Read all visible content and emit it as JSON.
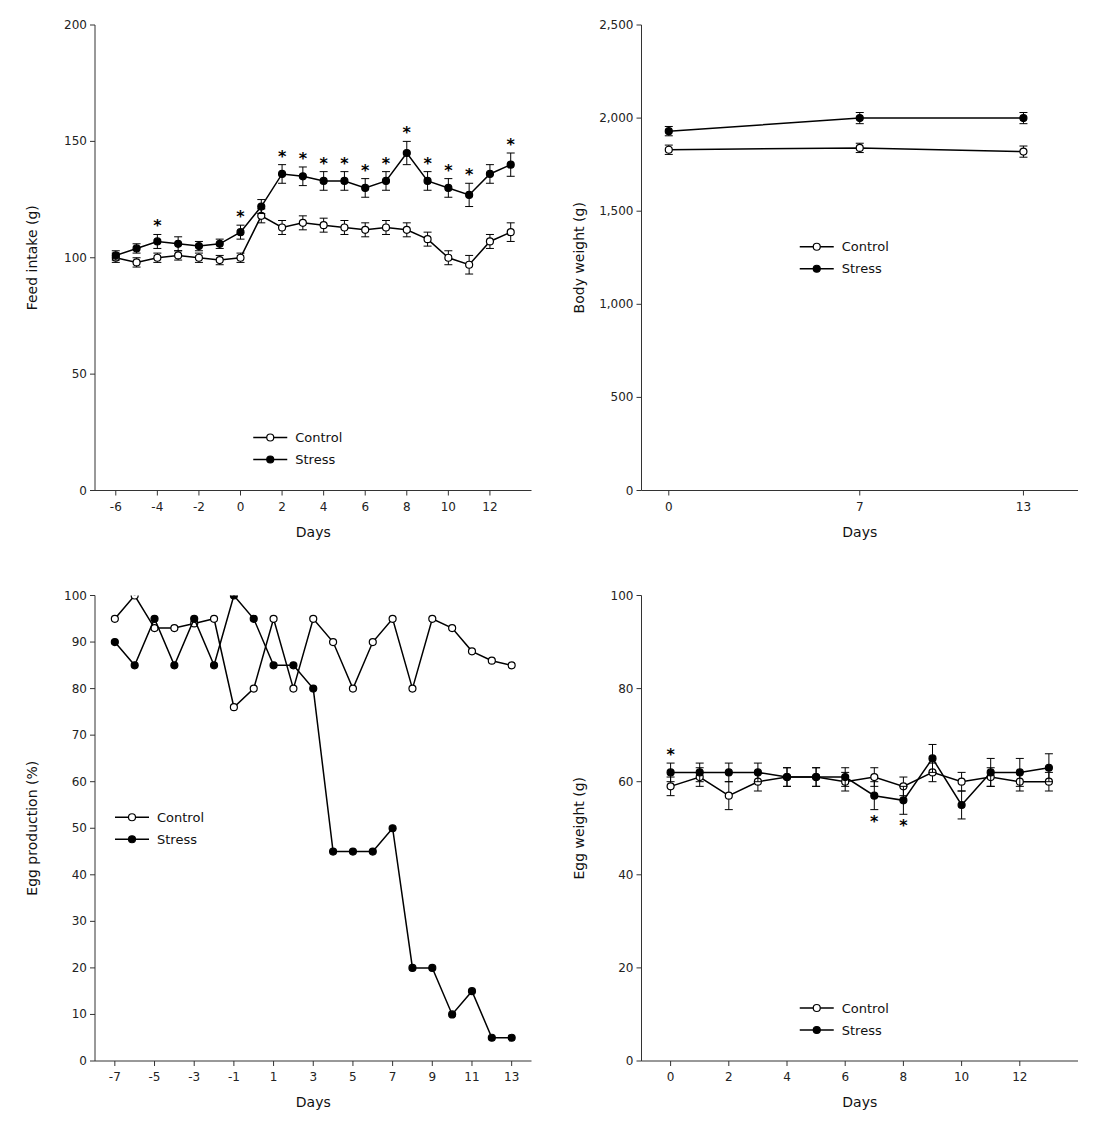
{
  "chart_data": [
    {
      "type": "line",
      "xlabel": "Days",
      "ylabel": "Feed intake (g)",
      "x": [
        -6,
        -5,
        -4,
        -3,
        -2,
        -1,
        0,
        1,
        2,
        3,
        4,
        5,
        6,
        7,
        8,
        9,
        10,
        11,
        12,
        13
      ],
      "series": [
        {
          "name": "Control",
          "color": "#000000",
          "marker": "circle-open",
          "values": [
            100,
            98,
            100,
            101,
            100,
            99,
            100,
            118,
            113,
            115,
            114,
            113,
            112,
            113,
            112,
            108,
            100,
            97,
            107,
            111
          ],
          "errors": [
            2,
            2,
            2,
            2,
            2,
            2,
            2,
            3,
            3,
            3,
            3,
            3,
            3,
            3,
            3,
            3,
            3,
            4,
            3,
            4
          ]
        },
        {
          "name": "Stress",
          "color": "#000000",
          "marker": "circle",
          "values": [
            101,
            104,
            107,
            106,
            105,
            106,
            111,
            122,
            136,
            135,
            133,
            133,
            130,
            133,
            145,
            133,
            130,
            127,
            136,
            140
          ],
          "errors": [
            2,
            2,
            3,
            3,
            2,
            2,
            3,
            3,
            4,
            4,
            4,
            4,
            4,
            4,
            5,
            4,
            4,
            5,
            4,
            5
          ]
        }
      ],
      "annotations": [
        {
          "text": "*",
          "x": -4,
          "series": "Stress",
          "position": "above"
        },
        {
          "text": "*",
          "x": 0,
          "series": "Stress",
          "position": "above"
        },
        {
          "text": "*",
          "x": 2,
          "series": "Stress",
          "position": "above"
        },
        {
          "text": "*",
          "x": 3,
          "series": "Stress",
          "position": "above"
        },
        {
          "text": "*",
          "x": 4,
          "series": "Stress",
          "position": "above"
        },
        {
          "text": "*",
          "x": 5,
          "series": "Stress",
          "position": "above"
        },
        {
          "text": "*",
          "x": 6,
          "series": "Stress",
          "position": "above"
        },
        {
          "text": "*",
          "x": 7,
          "series": "Stress",
          "position": "above"
        },
        {
          "text": "*",
          "x": 8,
          "series": "Stress",
          "position": "above"
        },
        {
          "text": "*",
          "x": 9,
          "series": "Stress",
          "position": "above"
        },
        {
          "text": "*",
          "x": 10,
          "series": "Stress",
          "position": "above"
        },
        {
          "text": "*",
          "x": 11,
          "series": "Stress",
          "position": "above"
        },
        {
          "text": "*",
          "x": 13,
          "series": "Stress",
          "position": "above"
        }
      ],
      "xlim": [
        -7,
        14
      ],
      "xticks": [
        -6,
        -4,
        -2,
        0,
        2,
        4,
        6,
        8,
        10,
        12
      ],
      "ylim": [
        0,
        200
      ],
      "yticks": [
        0,
        50,
        100,
        150,
        200
      ],
      "grid": false,
      "legend": "lower center"
    },
    {
      "type": "line",
      "xlabel": "Days",
      "ylabel": "Body weight (g)",
      "x": [
        0,
        7,
        13
      ],
      "series": [
        {
          "name": "Control",
          "color": "#000000",
          "marker": "circle-open",
          "values": [
            1830,
            1840,
            1820
          ],
          "errors": [
            25,
            25,
            30
          ]
        },
        {
          "name": "Stress",
          "color": "#000000",
          "marker": "circle",
          "values": [
            1930,
            2000,
            2000
          ],
          "errors": [
            25,
            30,
            30
          ]
        }
      ],
      "xlim": [
        -1,
        15
      ],
      "xticks": [
        0,
        7,
        13
      ],
      "ylim": [
        0,
        2500
      ],
      "yticks": [
        0,
        500,
        {
          "value": 1000,
          "label": "1,000"
        },
        {
          "value": 1500,
          "label": "1,500"
        },
        {
          "value": 2000,
          "label": "2,000"
        },
        {
          "value": 2500,
          "label": "2,500"
        }
      ],
      "grid": false,
      "legend": "center"
    },
    {
      "type": "line",
      "xlabel": "Days",
      "ylabel": "Egg production (%)",
      "x": [
        -7,
        -6,
        -5,
        -4,
        -3,
        -2,
        -1,
        0,
        1,
        2,
        3,
        4,
        5,
        6,
        7,
        8,
        9,
        10,
        11,
        12,
        13
      ],
      "series": [
        {
          "name": "Control",
          "color": "#000000",
          "marker": "circle-open",
          "values": [
            95,
            100,
            93,
            93,
            94,
            95,
            76,
            80,
            95,
            80,
            95,
            90,
            80,
            90,
            95,
            80,
            95,
            93,
            88,
            86,
            85
          ]
        },
        {
          "name": "Stress",
          "color": "#000000",
          "marker": "circle",
          "values": [
            90,
            85,
            95,
            85,
            95,
            85,
            100,
            95,
            85,
            85,
            80,
            45,
            45,
            45,
            50,
            20,
            20,
            10,
            15,
            5,
            5
          ]
        }
      ],
      "xlim": [
        -8,
        14
      ],
      "xticks": [
        -7,
        -5,
        -3,
        -1,
        1,
        3,
        5,
        7,
        9,
        11,
        13
      ],
      "ylim": [
        0,
        100
      ],
      "yticks": [
        0,
        10,
        20,
        30,
        40,
        50,
        60,
        70,
        80,
        90,
        100
      ],
      "grid": false,
      "legend": "center left"
    },
    {
      "type": "line",
      "xlabel": "Days",
      "ylabel": "Egg weight (g)",
      "x": [
        0,
        1,
        2,
        3,
        4,
        5,
        6,
        7,
        8,
        9,
        10,
        11,
        12,
        13
      ],
      "series": [
        {
          "name": "Control",
          "color": "#000000",
          "marker": "circle-open",
          "values": [
            59,
            61,
            57,
            60,
            61,
            61,
            60,
            61,
            59,
            62,
            60,
            61,
            60,
            60
          ],
          "errors": [
            2,
            2,
            3,
            2,
            2,
            2,
            2,
            2,
            2,
            2,
            2,
            2,
            2,
            2
          ]
        },
        {
          "name": "Stress",
          "color": "#000000",
          "marker": "circle",
          "values": [
            62,
            62,
            62,
            62,
            61,
            61,
            61,
            57,
            56,
            65,
            55,
            62,
            62,
            63
          ],
          "errors": [
            2,
            2,
            2,
            2,
            2,
            2,
            2,
            3,
            3,
            3,
            3,
            3,
            3,
            3
          ]
        }
      ],
      "annotations": [
        {
          "text": "*",
          "x": 0,
          "series": "Stress",
          "position": "above"
        },
        {
          "text": "*",
          "x": 7,
          "series": "Stress",
          "position": "below"
        },
        {
          "text": "*",
          "x": 8,
          "series": "Stress",
          "position": "below"
        }
      ],
      "xlim": [
        -1,
        14
      ],
      "xticks": [
        0,
        2,
        4,
        6,
        8,
        10,
        12
      ],
      "ylim": [
        0,
        100
      ],
      "yticks": [
        0,
        20,
        40,
        60,
        80,
        100
      ],
      "grid": false,
      "legend": "lower center"
    }
  ]
}
